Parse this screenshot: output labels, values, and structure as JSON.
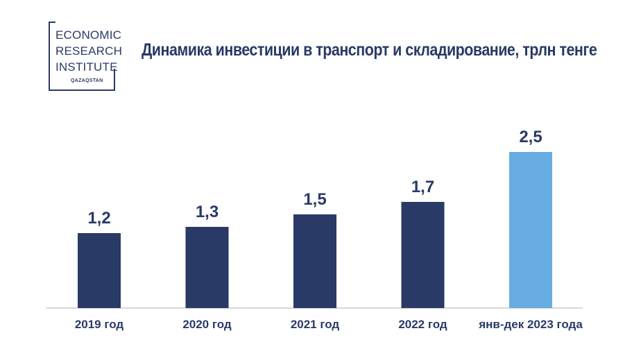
{
  "logo": {
    "line1": "ECONOMIC",
    "line2": "RESEARCH",
    "line3": "INSTITUTE",
    "sub": "QAZAQSTAN"
  },
  "chart_data": {
    "type": "bar",
    "title": "Динамика инвестиции в транспорт и складирование, трлн тенге",
    "categories": [
      "2019 год",
      "2020 год",
      "2021 год",
      "2022 год",
      "янв-дек 2023 года"
    ],
    "values": [
      1.2,
      1.3,
      1.5,
      1.7,
      2.5
    ],
    "value_labels": [
      "1,2",
      "1,3",
      "1,5",
      "1,7",
      "2,5"
    ],
    "colors": [
      "#2a3a66",
      "#2a3a66",
      "#2a3a66",
      "#2a3a66",
      "#67ade2"
    ],
    "ylim": [
      0,
      2.5
    ],
    "grid": false,
    "legend": "none"
  }
}
